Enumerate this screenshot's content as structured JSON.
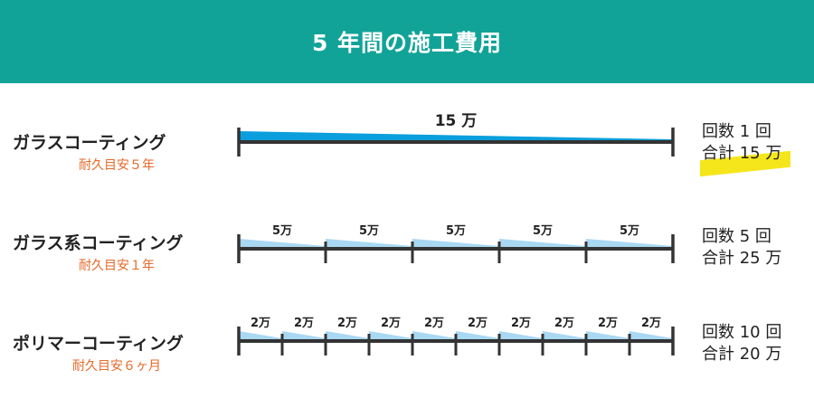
{
  "title": "5 年間の施工費用",
  "colors": {
    "header": "#12a398",
    "bar_strong": "#0a9fdc",
    "bar_light": "#a9d8f2",
    "axis": "#333333",
    "accent": "#e46a2a",
    "highlight": "#f5e61c"
  },
  "rows": [
    {
      "name": "ガラスコーティング",
      "guide": "耐久目安５年",
      "segments": 1,
      "segment_label": "15 万",
      "count": "回数 1 回",
      "total": "合計 15 万",
      "highlighted": true
    },
    {
      "name": "ガラス系コーティング",
      "guide": "耐久目安１年",
      "segments": 5,
      "segment_label": "5万",
      "count": "回数 5 回",
      "total": "合計 25 万",
      "highlighted": false
    },
    {
      "name": "ポリマーコーティング",
      "guide": "耐久目安６ヶ月",
      "segments": 10,
      "segment_label": "2万",
      "count": "回数 10 回",
      "total": "合計 20 万",
      "highlighted": false
    }
  ]
}
